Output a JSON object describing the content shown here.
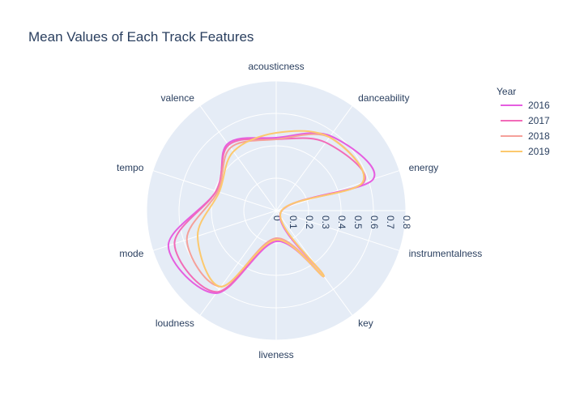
{
  "chart_data": {
    "type": "radar",
    "title": "Mean Values of Each Track Features",
    "axes": [
      "acousticness",
      "danceability",
      "energy",
      "instrumentalness",
      "key",
      "liveness",
      "loudness",
      "mode",
      "tempo",
      "valence"
    ],
    "radial_range": [
      0,
      0.8
    ],
    "radial_ticks": [
      "0",
      "0.1",
      "0.2",
      "0.3",
      "0.4",
      "0.5",
      "0.6",
      "0.7",
      "0.8"
    ],
    "legend_title": "Year",
    "legend_position": "top-right",
    "series": [
      {
        "name": "2016",
        "color": "#e55ee0",
        "values": [
          0.45,
          0.57,
          0.63,
          0.03,
          0.5,
          0.19,
          0.63,
          0.7,
          0.39,
          0.51
        ]
      },
      {
        "name": "2017",
        "color": "#f26bb8",
        "values": [
          0.44,
          0.52,
          0.57,
          0.03,
          0.5,
          0.18,
          0.62,
          0.66,
          0.39,
          0.5
        ]
      },
      {
        "name": "2018",
        "color": "#f5a09a",
        "values": [
          0.44,
          0.56,
          0.56,
          0.03,
          0.5,
          0.17,
          0.58,
          0.58,
          0.38,
          0.48
        ]
      },
      {
        "name": "2019",
        "color": "#fcc96e",
        "values": [
          0.48,
          0.56,
          0.56,
          0.03,
          0.5,
          0.18,
          0.58,
          0.51,
          0.37,
          0.45
        ]
      }
    ]
  }
}
